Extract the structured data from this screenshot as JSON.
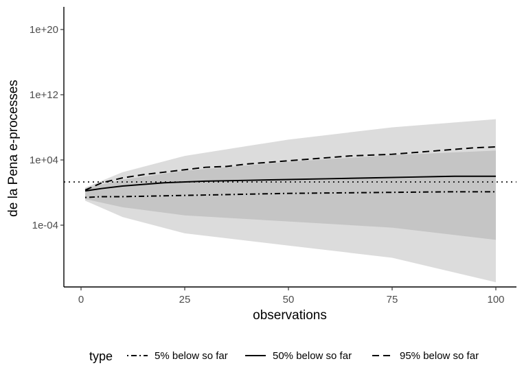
{
  "chart_data": {
    "type": "line",
    "xlabel": "observations",
    "ylabel": "de la Pena e-processes",
    "x_ticks": [
      "0",
      "25",
      "50",
      "75",
      "100"
    ],
    "y_ticks": [
      "1e-04",
      "1e+04",
      "1e+12",
      "1e+20"
    ],
    "y_scale": "log10",
    "xlim": [
      -4,
      105
    ],
    "ylim_log10": [
      -12,
      23
    ],
    "threshold_line": {
      "y": 20,
      "style": "dotted"
    },
    "grid": false,
    "legend": {
      "title": "type",
      "position": "bottom",
      "entries": [
        "5% below so far",
        "50% below so far",
        "95% below so far"
      ]
    },
    "band": {
      "description_free": true,
      "x": [
        1,
        10,
        25,
        50,
        75,
        100
      ],
      "lower_log10": [
        -1,
        -3,
        -5,
        -6.5,
        -8,
        -11
      ],
      "upper_log10": [
        0.6,
        2.5,
        4.5,
        6.5,
        8,
        9
      ]
    },
    "series": [
      {
        "name": "5% below so far",
        "style": "dotdash",
        "x": [
          1,
          5,
          10,
          20,
          30,
          40,
          50,
          60,
          70,
          80,
          90,
          100
        ],
        "y_log10": [
          -0.6,
          -0.5,
          -0.5,
          -0.4,
          -0.3,
          -0.2,
          -0.1,
          -0.05,
          0.0,
          0.05,
          0.1,
          0.1
        ]
      },
      {
        "name": "50% below so far",
        "style": "solid",
        "x": [
          1,
          5,
          10,
          20,
          30,
          40,
          50,
          60,
          70,
          80,
          90,
          100
        ],
        "y_log10": [
          0.2,
          0.5,
          0.8,
          1.2,
          1.4,
          1.5,
          1.6,
          1.7,
          1.8,
          1.9,
          2.0,
          2.0
        ]
      },
      {
        "name": "95% below so far",
        "style": "dashed",
        "x": [
          1,
          5,
          10,
          15,
          20,
          25,
          30,
          35,
          40,
          45,
          50,
          55,
          60,
          65,
          70,
          75,
          80,
          85,
          90,
          95,
          100
        ],
        "y_log10": [
          0.3,
          1.2,
          1.8,
          2.2,
          2.5,
          2.8,
          3.1,
          3.2,
          3.5,
          3.7,
          3.9,
          4.1,
          4.3,
          4.5,
          4.6,
          4.7,
          4.9,
          5.1,
          5.3,
          5.5,
          5.6
        ]
      }
    ],
    "colors": {
      "lines": "#000000",
      "band": "#9a9a9a",
      "axis": "#000000",
      "tick_text": "#4d4d4d"
    }
  }
}
